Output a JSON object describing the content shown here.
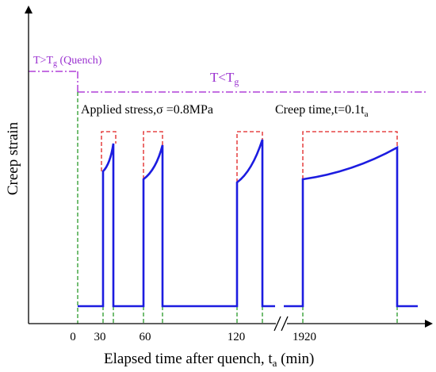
{
  "figure": {
    "y_axis_label": "Creep strain",
    "x_axis_label_main": "Elapsed time after quench, t",
    "x_axis_label_sub": "a",
    "x_axis_label_unit": " (min)",
    "tick_labels": [
      "0",
      "30",
      "60",
      "120",
      "1920"
    ],
    "quench_label_main": "T>T",
    "quench_label_sub": "g",
    "quench_label_suffix": " (Quench)",
    "below_tg_label_main": "T<T",
    "below_tg_label_sub": "g",
    "stress_label": "Applied stress,σ =0.8MPa",
    "creep_time_label_main": "Creep time,t=0.1t",
    "creep_time_label_sub": "a",
    "colors": {
      "axes": "#000000",
      "strain_curve": "#1c1ce0",
      "temperature_line": "#b040d8",
      "creep_window": "#e02020",
      "time_markers": "#2a9a2a"
    }
  }
}
